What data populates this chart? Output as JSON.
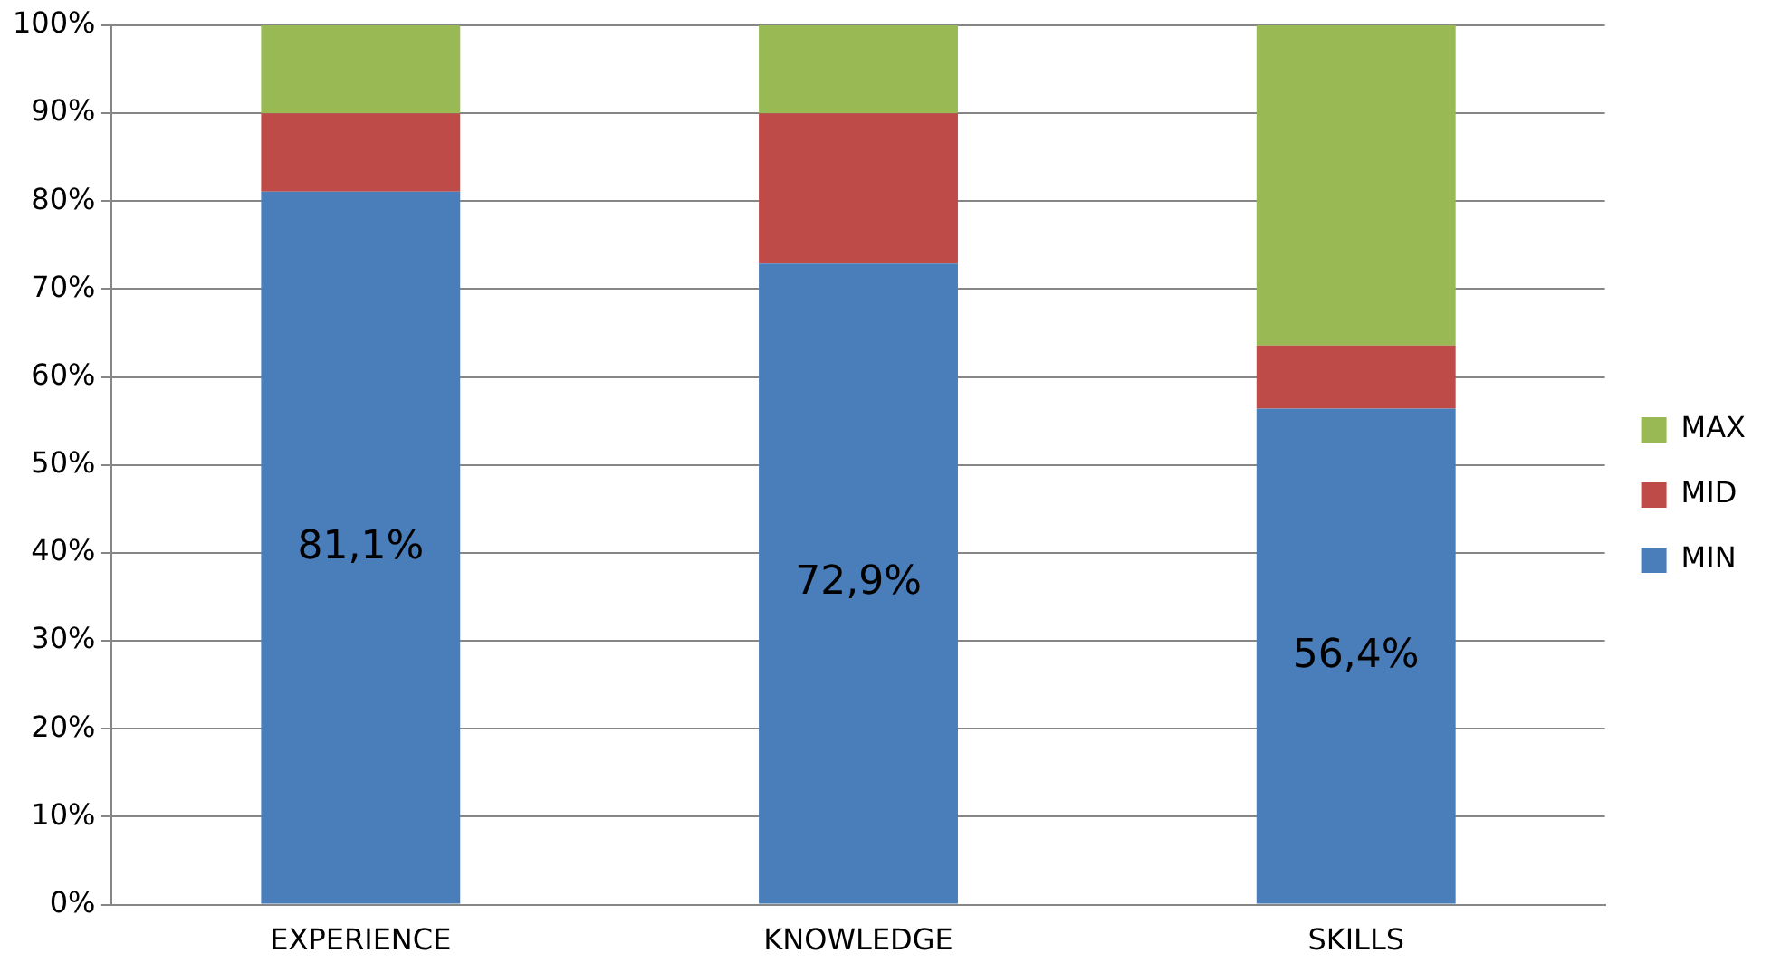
{
  "chart_data": {
    "type": "bar",
    "stacked": true,
    "categories": [
      "EXPERIENCE",
      "KNOWLEDGE",
      "SKILLS"
    ],
    "series": [
      {
        "name": "MIN",
        "color": "#4a7ebb",
        "values": [
          81.1,
          72.9,
          56.4
        ],
        "value_labels": [
          "81,1%",
          "72,9%",
          "56,4%"
        ]
      },
      {
        "name": "MID",
        "color": "#be4b48",
        "values": [
          8.9,
          17.1,
          7.2
        ]
      },
      {
        "name": "MAX",
        "color": "#98b954",
        "values": [
          10.0,
          10.0,
          36.4
        ]
      }
    ],
    "ylim": [
      0,
      100
    ],
    "yticks": [
      {
        "value": 0,
        "label": "0%"
      },
      {
        "value": 10,
        "label": "10%"
      },
      {
        "value": 20,
        "label": "20%"
      },
      {
        "value": 30,
        "label": "30%"
      },
      {
        "value": 40,
        "label": "40%"
      },
      {
        "value": 50,
        "label": "50%"
      },
      {
        "value": 60,
        "label": "60%"
      },
      {
        "value": 70,
        "label": "70%"
      },
      {
        "value": 80,
        "label": "80%"
      },
      {
        "value": 90,
        "label": "90%"
      },
      {
        "value": 100,
        "label": "100%"
      }
    ],
    "grid": "y",
    "legend": "right"
  }
}
